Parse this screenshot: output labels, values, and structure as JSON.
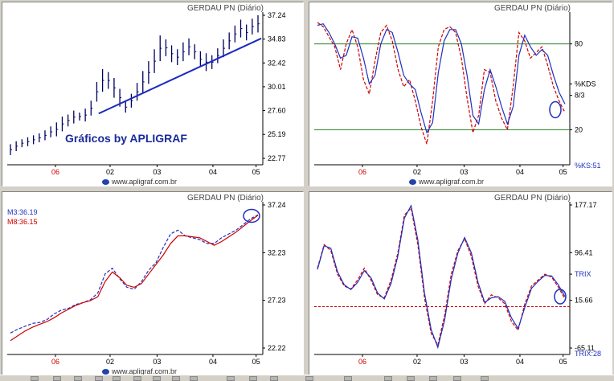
{
  "chart_data": [
    {
      "type": "candlestick",
      "title": "GERDAU PN (Diário)",
      "watermark": "Gráficos by APLIGRAF",
      "footer": "www.apligraf.com.br",
      "x_ticks": [
        "06",
        "02",
        "03",
        "04",
        "05"
      ],
      "y_ticks": [
        "37.24",
        "34.83",
        "32.42",
        "30.01",
        "27.60",
        "25.19",
        "22.77"
      ],
      "ylim": [
        22.77,
        37.24
      ],
      "bars": [
        {
          "l": 23.1,
          "h": 24.2
        },
        {
          "l": 23.5,
          "h": 24.5
        },
        {
          "l": 23.9,
          "h": 24.7
        },
        {
          "l": 24.0,
          "h": 24.9
        },
        {
          "l": 24.2,
          "h": 25.1
        },
        {
          "l": 24.4,
          "h": 25.3
        },
        {
          "l": 24.6,
          "h": 25.6
        },
        {
          "l": 24.9,
          "h": 26.0
        },
        {
          "l": 25.0,
          "h": 26.4
        },
        {
          "l": 25.5,
          "h": 27.0
        },
        {
          "l": 26.0,
          "h": 27.2
        },
        {
          "l": 26.3,
          "h": 27.6
        },
        {
          "l": 26.6,
          "h": 27.4
        },
        {
          "l": 26.5,
          "h": 27.8
        },
        {
          "l": 27.1,
          "h": 28.6
        },
        {
          "l": 28.5,
          "h": 30.5
        },
        {
          "l": 29.5,
          "h": 31.8
        },
        {
          "l": 29.8,
          "h": 31.5
        },
        {
          "l": 28.9,
          "h": 30.9
        },
        {
          "l": 28.0,
          "h": 29.8
        },
        {
          "l": 27.4,
          "h": 28.5
        },
        {
          "l": 27.9,
          "h": 29.3
        },
        {
          "l": 28.6,
          "h": 30.4
        },
        {
          "l": 29.4,
          "h": 31.6
        },
        {
          "l": 30.3,
          "h": 32.6
        },
        {
          "l": 31.4,
          "h": 33.8
        },
        {
          "l": 32.6,
          "h": 35.2
        },
        {
          "l": 33.1,
          "h": 34.8
        },
        {
          "l": 32.5,
          "h": 34.2
        },
        {
          "l": 32.2,
          "h": 33.8
        },
        {
          "l": 32.6,
          "h": 34.5
        },
        {
          "l": 33.2,
          "h": 34.9
        },
        {
          "l": 32.8,
          "h": 34.3
        },
        {
          "l": 32.0,
          "h": 33.6
        },
        {
          "l": 31.6,
          "h": 33.4
        },
        {
          "l": 31.8,
          "h": 33.2
        },
        {
          "l": 32.4,
          "h": 33.9
        },
        {
          "l": 33.0,
          "h": 34.8
        },
        {
          "l": 33.8,
          "h": 35.5
        },
        {
          "l": 34.5,
          "h": 36.2
        },
        {
          "l": 35.0,
          "h": 36.8
        },
        {
          "l": 34.7,
          "h": 36.3
        },
        {
          "l": 35.3,
          "h": 36.9
        },
        {
          "l": 35.5,
          "h": 37.24
        }
      ],
      "trendline": {
        "from": [
          0.36,
          27.3
        ],
        "to": [
          1.0,
          34.9
        ]
      }
    },
    {
      "type": "line",
      "title": "GERDAU PN (Diário)",
      "footer": "www.apligraf.com.br",
      "x_ticks": [
        "06",
        "02",
        "03",
        "04",
        "05"
      ],
      "y_ticks": [
        "80",
        "%KDS",
        "8/3",
        "20"
      ],
      "indicator_label": "%KS:51",
      "ylim": [
        0,
        100
      ],
      "ref_levels": [
        80,
        20
      ],
      "series": [
        {
          "values": [
            95,
            92,
            85,
            78,
            62,
            80,
            90,
            78,
            55,
            45,
            68,
            88,
            93,
            82,
            62,
            50,
            55,
            40,
            22,
            10,
            40,
            78,
            90,
            92,
            88,
            70,
            42,
            18,
            30,
            62,
            60,
            40,
            28,
            20,
            50,
            88,
            82,
            70,
            74,
            78,
            65,
            50,
            40,
            32
          ]
        },
        {
          "values": [
            93,
            94,
            88,
            80,
            70,
            72,
            85,
            84,
            70,
            52,
            58,
            80,
            90,
            88,
            74,
            58,
            52,
            48,
            32,
            18,
            25,
            60,
            82,
            90,
            90,
            80,
            58,
            30,
            24,
            48,
            62,
            50,
            36,
            24,
            36,
            72,
            86,
            78,
            72,
            76,
            72,
            58,
            46,
            38
          ]
        }
      ]
    },
    {
      "type": "line",
      "title": "GERDAU PN (Diário)",
      "footer": "www.apligraf.com.br",
      "x_ticks": [
        "06",
        "02",
        "03",
        "04",
        "05"
      ],
      "y_ticks": [
        "37.24",
        "32.23",
        "27.23",
        "22.22"
      ],
      "legend": [
        {
          "name": "M3:36.19",
          "color": "#2030c0"
        },
        {
          "name": "M8:36.15",
          "color": "#d00000"
        }
      ],
      "ylim": [
        22.22,
        37.24
      ],
      "series": [
        {
          "name": "M3:36.19",
          "values": [
            23.8,
            24.2,
            24.5,
            24.8,
            24.9,
            25.2,
            25.8,
            26.2,
            26.4,
            26.8,
            27.0,
            27.3,
            28.0,
            30.0,
            30.6,
            29.5,
            28.6,
            28.4,
            29.2,
            30.4,
            31.2,
            32.8,
            34.2,
            34.6,
            34.0,
            33.8,
            33.6,
            33.2,
            33.2,
            33.8,
            34.2,
            34.6,
            35.2,
            35.8,
            36.19
          ]
        },
        {
          "name": "M8:36.15",
          "values": [
            23.0,
            23.5,
            24.0,
            24.4,
            24.7,
            25.0,
            25.4,
            25.9,
            26.3,
            26.7,
            27.0,
            27.2,
            27.6,
            29.2,
            30.2,
            29.6,
            28.8,
            28.6,
            29.0,
            30.0,
            31.0,
            32.0,
            33.2,
            34.0,
            34.0,
            33.9,
            33.8,
            33.4,
            33.0,
            33.4,
            33.9,
            34.4,
            35.0,
            35.6,
            36.15
          ]
        }
      ]
    },
    {
      "type": "line",
      "title": "GERDAU PN (Diário)",
      "footer": "www.apligraf.com.br",
      "x_ticks": [
        "06",
        "02",
        "03",
        "04",
        "05"
      ],
      "y_ticks": [
        "177.17",
        "96.41",
        "TRIX",
        "15.66",
        "-65.11"
      ],
      "indicator_label": "TRIX:28",
      "ylim": [
        -65.11,
        177.17
      ],
      "ref_levels": [
        5
      ],
      "series": [
        {
          "values": [
            70,
            110,
            100,
            60,
            40,
            35,
            50,
            70,
            50,
            25,
            20,
            50,
            95,
            160,
            172,
            110,
            20,
            -40,
            -60,
            -10,
            60,
            100,
            120,
            90,
            40,
            10,
            25,
            20,
            10,
            -20,
            -35,
            10,
            40,
            50,
            60,
            55,
            38,
            18
          ]
        },
        {
          "values": [
            68,
            108,
            104,
            64,
            42,
            34,
            46,
            66,
            54,
            28,
            18,
            44,
            90,
            155,
            176,
            118,
            28,
            -34,
            -64,
            -18,
            52,
            96,
            122,
            96,
            46,
            12,
            20,
            22,
            14,
            -14,
            -32,
            4,
            36,
            48,
            58,
            57,
            42,
            22
          ]
        }
      ]
    }
  ]
}
